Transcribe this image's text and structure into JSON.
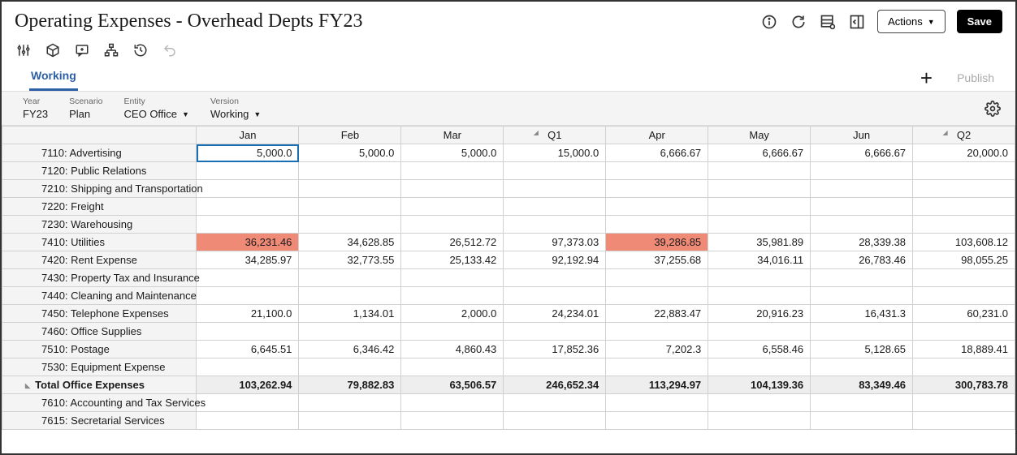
{
  "title": "Operating Expenses - Overhead Depts FY23",
  "header_buttons": {
    "actions": "Actions",
    "save": "Save"
  },
  "tabs": {
    "working": "Working",
    "publish": "Publish"
  },
  "pov": {
    "year": {
      "label": "Year",
      "value": "FY23"
    },
    "scenario": {
      "label": "Scenario",
      "value": "Plan"
    },
    "entity": {
      "label": "Entity",
      "value": "CEO Office"
    },
    "version": {
      "label": "Version",
      "value": "Working"
    }
  },
  "grid": {
    "columns": [
      "Jan",
      "Feb",
      "Mar",
      "Q1",
      "Apr",
      "May",
      "Jun",
      "Q2"
    ],
    "quarter_cols": [
      3,
      7
    ],
    "col_widths": {
      "rowhead": 232,
      "data": 122
    },
    "rows": [
      {
        "label": "7110: Advertising",
        "cells": [
          "5,000.0",
          "5,000.0",
          "5,000.0",
          "15,000.0",
          "6,666.67",
          "6,666.67",
          "6,666.67",
          "20,000.0"
        ],
        "selected_col": 0
      },
      {
        "label": "7120: Public Relations",
        "cells": [
          "",
          "",
          "",
          "",
          "",
          "",
          "",
          ""
        ]
      },
      {
        "label": "7210: Shipping and Transportation",
        "cells": [
          "",
          "",
          "",
          "",
          "",
          "",
          "",
          ""
        ]
      },
      {
        "label": "7220: Freight",
        "cells": [
          "",
          "",
          "",
          "",
          "",
          "",
          "",
          ""
        ]
      },
      {
        "label": "7230: Warehousing",
        "cells": [
          "",
          "",
          "",
          "",
          "",
          "",
          "",
          ""
        ]
      },
      {
        "label": "7410: Utilities",
        "cells": [
          "36,231.46",
          "34,628.85",
          "26,512.72",
          "97,373.03",
          "39,286.85",
          "35,981.89",
          "28,339.38",
          "103,608.12"
        ],
        "highlight_cols": [
          0,
          4
        ]
      },
      {
        "label": "7420: Rent Expense",
        "cells": [
          "34,285.97",
          "32,773.55",
          "25,133.42",
          "92,192.94",
          "37,255.68",
          "34,016.11",
          "26,783.46",
          "98,055.25"
        ]
      },
      {
        "label": "7430: Property Tax and Insurance",
        "cells": [
          "",
          "",
          "",
          "",
          "",
          "",
          "",
          ""
        ]
      },
      {
        "label": "7440: Cleaning and Maintenance",
        "cells": [
          "",
          "",
          "",
          "",
          "",
          "",
          "",
          ""
        ]
      },
      {
        "label": "7450: Telephone Expenses",
        "cells": [
          "21,100.0",
          "1,134.01",
          "2,000.0",
          "24,234.01",
          "22,883.47",
          "20,916.23",
          "16,431.3",
          "60,231.0"
        ]
      },
      {
        "label": "7460: Office Supplies",
        "cells": [
          "",
          "",
          "",
          "",
          "",
          "",
          "",
          ""
        ]
      },
      {
        "label": "7510: Postage",
        "cells": [
          "6,645.51",
          "6,346.42",
          "4,860.43",
          "17,852.36",
          "7,202.3",
          "6,558.46",
          "5,128.65",
          "18,889.41"
        ]
      },
      {
        "label": "7530: Equipment Expense",
        "cells": [
          "",
          "",
          "",
          "",
          "",
          "",
          "",
          ""
        ]
      },
      {
        "label": "Total Office Expenses",
        "total": true,
        "cells": [
          "103,262.94",
          "79,882.83",
          "63,506.57",
          "246,652.34",
          "113,294.97",
          "104,139.36",
          "83,349.46",
          "300,783.78"
        ]
      },
      {
        "label": "7610: Accounting and Tax Services",
        "cells": [
          "",
          "",
          "",
          "",
          "",
          "",
          "",
          ""
        ]
      },
      {
        "label": "7615: Secretarial Services",
        "cells": [
          "",
          "",
          "",
          "",
          "",
          "",
          "",
          ""
        ]
      }
    ]
  },
  "colors": {
    "highlight_cell": "#ef8a77",
    "selected_border": "#1a6fb3",
    "tab_active": "#2c5fa5",
    "header_bg": "#f4f4f4",
    "grid_border": "#d0d0d0",
    "total_bg": "#eeeeee"
  }
}
